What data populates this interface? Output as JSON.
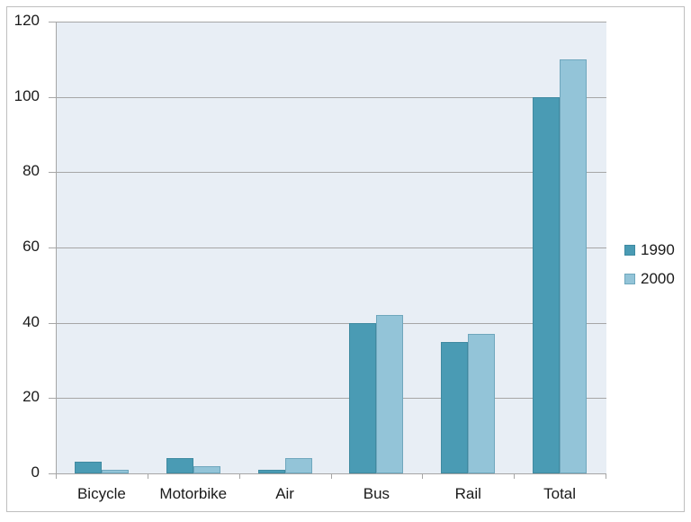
{
  "chart_data": {
    "type": "bar",
    "title": "",
    "xlabel": "",
    "ylabel": "",
    "categories": [
      "Bicycle",
      "Motorbike",
      "Air",
      "Bus",
      "Rail",
      "Total"
    ],
    "series": [
      {
        "name": "1990",
        "color": "#4a9bb4",
        "values": [
          3,
          4,
          1,
          40,
          35,
          100
        ]
      },
      {
        "name": "2000",
        "color": "#93c4d8",
        "values": [
          1,
          2,
          4,
          42,
          37,
          110
        ]
      }
    ],
    "ylim": [
      0,
      120
    ],
    "yticks": [
      0,
      20,
      40,
      60,
      80,
      100,
      120
    ],
    "grid": true,
    "legend_position": "right"
  },
  "legend": {
    "items": [
      {
        "label": "1990",
        "color": "#4a9bb4"
      },
      {
        "label": "2000",
        "color": "#93c4d8"
      }
    ]
  }
}
